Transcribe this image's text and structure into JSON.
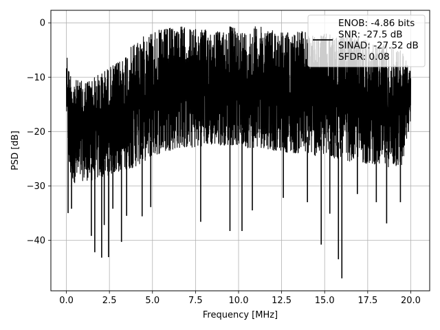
{
  "chart_data": {
    "type": "line",
    "xlabel": "Frequency [MHz]",
    "ylabel": "PSD [dB]",
    "xlim": [
      -0.9,
      21.1
    ],
    "ylim": [
      -49.3,
      2.3
    ],
    "xticks": [
      0.0,
      2.5,
      5.0,
      7.5,
      10.0,
      12.5,
      15.0,
      17.5,
      20.0
    ],
    "xtick_labels": [
      "0.0",
      "2.5",
      "5.0",
      "7.5",
      "10.0",
      "12.5",
      "15.0",
      "17.5",
      "20.0"
    ],
    "yticks": [
      0,
      -10,
      -20,
      -30,
      -40
    ],
    "ytick_labels": [
      "0",
      "−10",
      "−20",
      "−30",
      "−40"
    ],
    "grid": true,
    "legend_position": "top-right",
    "legend_lines": [
      "ENOB: -4.86 bits",
      "SNR: -27.5 dB",
      "SINAD: -27.52 dB",
      "SFDR: 0.08"
    ],
    "series": [
      {
        "color": "#000000",
        "x_range": [
          0.0,
          20.0
        ],
        "envelope_upper": [
          [
            0.0,
            -4.6
          ],
          [
            0.15,
            -8.5
          ],
          [
            0.5,
            -10.5
          ],
          [
            1.0,
            -10.8
          ],
          [
            1.5,
            -10.2
          ],
          [
            2.0,
            -9.3
          ],
          [
            2.5,
            -8.2
          ],
          [
            3.0,
            -7.3
          ],
          [
            3.5,
            -5.5
          ],
          [
            4.0,
            -3.5
          ],
          [
            4.5,
            -2.5
          ],
          [
            5.0,
            -1.5
          ],
          [
            5.5,
            -1.3
          ],
          [
            6.0,
            -1.0
          ],
          [
            6.5,
            -0.5
          ],
          [
            7.0,
            -1.0
          ],
          [
            7.5,
            -1.2
          ],
          [
            8.0,
            -1.3
          ],
          [
            8.5,
            -1.2
          ],
          [
            9.0,
            -1.8
          ],
          [
            9.5,
            -0.6
          ],
          [
            10.0,
            -1.3
          ],
          [
            10.5,
            -1.8
          ],
          [
            11.0,
            -0.6
          ],
          [
            11.5,
            -0.9
          ],
          [
            12.0,
            -1.3
          ],
          [
            12.5,
            -1.6
          ],
          [
            13.0,
            -1.8
          ],
          [
            13.5,
            -1.5
          ],
          [
            14.0,
            -1.8
          ],
          [
            14.5,
            -2.8
          ],
          [
            15.0,
            -2.0
          ],
          [
            15.5,
            -2.3
          ],
          [
            16.0,
            -2.4
          ],
          [
            16.5,
            -2.5
          ],
          [
            17.0,
            -2.8
          ],
          [
            17.5,
            -3.0
          ],
          [
            18.0,
            -4.2
          ],
          [
            18.5,
            -3.6
          ],
          [
            19.0,
            -4.5
          ],
          [
            19.5,
            -5.2
          ],
          [
            20.0,
            -9.0
          ]
        ],
        "envelope_lower": [
          [
            0.0,
            -17.0
          ],
          [
            0.15,
            -28.0
          ],
          [
            0.5,
            -29.5
          ],
          [
            1.0,
            -29.0
          ],
          [
            1.5,
            -29.0
          ],
          [
            2.0,
            -28.5
          ],
          [
            2.5,
            -28.0
          ],
          [
            3.0,
            -27.5
          ],
          [
            3.5,
            -27.0
          ],
          [
            4.0,
            -26.5
          ],
          [
            4.5,
            -25.5
          ],
          [
            5.0,
            -24.5
          ],
          [
            5.5,
            -24.0
          ],
          [
            6.0,
            -23.5
          ],
          [
            6.5,
            -23.0
          ],
          [
            7.0,
            -23.0
          ],
          [
            7.5,
            -23.0
          ],
          [
            8.0,
            -22.5
          ],
          [
            8.5,
            -22.5
          ],
          [
            9.0,
            -22.5
          ],
          [
            9.5,
            -22.5
          ],
          [
            10.0,
            -22.5
          ],
          [
            10.5,
            -23.0
          ],
          [
            11.0,
            -23.0
          ],
          [
            11.5,
            -23.0
          ],
          [
            12.0,
            -23.5
          ],
          [
            12.5,
            -23.5
          ],
          [
            13.0,
            -24.0
          ],
          [
            13.5,
            -24.0
          ],
          [
            14.0,
            -24.0
          ],
          [
            14.5,
            -24.5
          ],
          [
            15.0,
            -24.5
          ],
          [
            15.5,
            -25.0
          ],
          [
            16.0,
            -25.0
          ],
          [
            16.5,
            -25.5
          ],
          [
            17.0,
            -25.5
          ],
          [
            17.5,
            -26.0
          ],
          [
            18.0,
            -26.0
          ],
          [
            18.5,
            -26.5
          ],
          [
            19.0,
            -26.5
          ],
          [
            19.5,
            -26.5
          ],
          [
            20.0,
            -18.0
          ]
        ],
        "deep_dips": [
          [
            0.1,
            -35.0
          ],
          [
            0.3,
            -34.2
          ],
          [
            1.45,
            -39.2
          ],
          [
            1.65,
            -42.2
          ],
          [
            2.05,
            -43.2
          ],
          [
            2.2,
            -37.2
          ],
          [
            2.45,
            -43.1
          ],
          [
            2.7,
            -34.2
          ],
          [
            3.2,
            -40.3
          ],
          [
            3.5,
            -35.5
          ],
          [
            4.4,
            -35.6
          ],
          [
            4.9,
            -33.9
          ],
          [
            7.8,
            -36.6
          ],
          [
            9.5,
            -38.3
          ],
          [
            10.2,
            -38.3
          ],
          [
            10.8,
            -34.5
          ],
          [
            12.6,
            -32.2
          ],
          [
            14.0,
            -33.0
          ],
          [
            14.8,
            -40.8
          ],
          [
            15.3,
            -35.1
          ],
          [
            15.8,
            -43.5
          ],
          [
            16.0,
            -47.0
          ],
          [
            16.9,
            -31.5
          ],
          [
            18.0,
            -33.0
          ],
          [
            18.6,
            -36.9
          ],
          [
            19.4,
            -33.0
          ]
        ]
      }
    ]
  }
}
